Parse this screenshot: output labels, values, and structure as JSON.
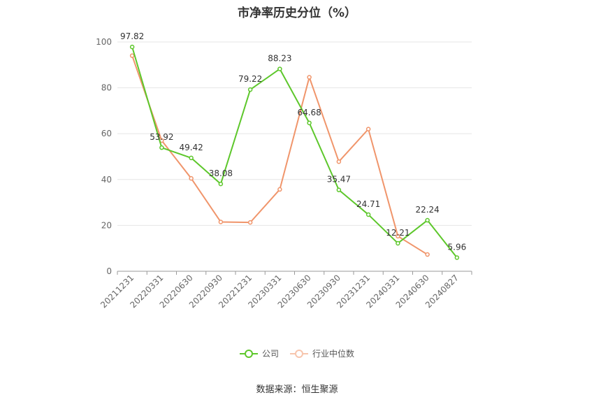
{
  "chart_data": {
    "type": "line",
    "title": "市净率历史分位（%）",
    "categories": [
      "20211231",
      "20220331",
      "20220630",
      "20220930",
      "20221231",
      "20230331",
      "20230630",
      "20230930",
      "20231231",
      "20240331",
      "20240630",
      "20240827"
    ],
    "ylim": [
      0,
      100
    ],
    "yticks": [
      0,
      20,
      40,
      60,
      80,
      100
    ],
    "grid": true,
    "legend_position": "bottom",
    "series": [
      {
        "name": "公司",
        "color": "#5dc72b",
        "values": [
          97.82,
          53.92,
          49.42,
          38.08,
          79.22,
          88.23,
          64.68,
          35.47,
          24.71,
          12.21,
          22.24,
          5.96
        ],
        "labels": [
          "97.82",
          "53.92",
          "49.42",
          "38.08",
          "79.22",
          "88.23",
          "64.68",
          "35.47",
          "24.71",
          "12.21",
          "22.24",
          "5.96"
        ]
      },
      {
        "name": "行业中位数",
        "color": "#f0956b",
        "values": [
          94,
          57,
          40.5,
          21.5,
          21.3,
          35.7,
          84.6,
          47.8,
          62,
          15.3,
          7.3,
          null
        ]
      }
    ]
  },
  "source": "数据来源：恒生聚源"
}
